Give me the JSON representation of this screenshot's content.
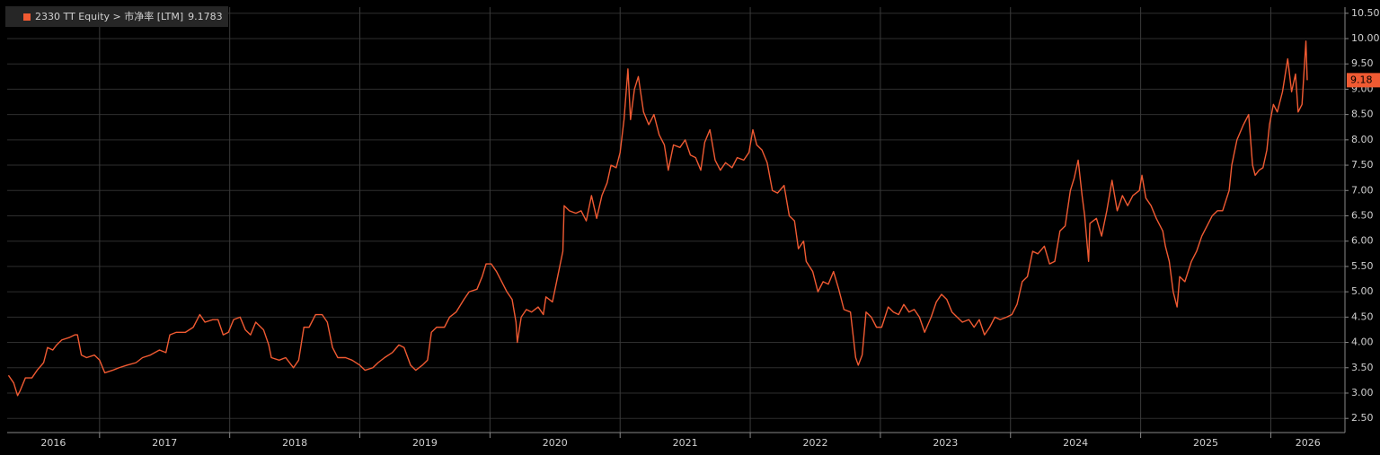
{
  "chart_data": {
    "type": "line",
    "xlim": [
      2016.29,
      2026.57
    ],
    "ylim": [
      2.22,
      10.62
    ],
    "xticks": [
      2017,
      2018,
      2019,
      2020,
      2021,
      2022,
      2023,
      2024,
      2025,
      2026
    ],
    "year_labels": [
      2016,
      2017,
      2018,
      2019,
      2020,
      2021,
      2022,
      2023,
      2024,
      2025,
      2026
    ],
    "yticks": [
      {
        "value": 2.5,
        "label": "2.50"
      },
      {
        "value": 3,
        "label": "3.00"
      },
      {
        "value": 3.5,
        "label": "3.50"
      },
      {
        "value": 4,
        "label": "4.00"
      },
      {
        "value": 4.5,
        "label": "4.50"
      },
      {
        "value": 5,
        "label": "5.00"
      },
      {
        "value": 5.5,
        "label": "5.50"
      },
      {
        "value": 6,
        "label": "6.00"
      },
      {
        "value": 6.5,
        "label": "6.50"
      },
      {
        "value": 7,
        "label": "7.00"
      },
      {
        "value": 7.5,
        "label": "7.50"
      },
      {
        "value": 8,
        "label": "8.00"
      },
      {
        "value": 8.5,
        "label": "8.50"
      },
      {
        "value": 9,
        "label": "9.00"
      },
      {
        "value": 9.5,
        "label": "9.50"
      },
      {
        "value": 10,
        "label": "10.00"
      },
      {
        "value": 10.5,
        "label": "10.50"
      }
    ],
    "grid": true,
    "x": [
      2016.3,
      2016.34,
      2016.37,
      2016.39,
      2016.43,
      2016.48,
      2016.52,
      2016.57,
      2016.6,
      2016.64,
      2016.67,
      2016.71,
      2016.77,
      2016.81,
      2016.83,
      2016.86,
      2016.9,
      2016.96,
      2017.0,
      2017.04,
      2017.1,
      2017.15,
      2017.21,
      2017.28,
      2017.33,
      2017.39,
      2017.46,
      2017.51,
      2017.54,
      2017.59,
      2017.66,
      2017.72,
      2017.77,
      2017.81,
      2017.87,
      2017.91,
      2017.95,
      2017.99,
      2018.03,
      2018.08,
      2018.12,
      2018.16,
      2018.2,
      2018.26,
      2018.3,
      2018.32,
      2018.38,
      2018.43,
      2018.49,
      2018.53,
      2018.57,
      2018.61,
      2018.66,
      2018.71,
      2018.75,
      2018.79,
      2018.83,
      2018.89,
      2018.94,
      2019.0,
      2019.04,
      2019.1,
      2019.14,
      2019.19,
      2019.25,
      2019.3,
      2019.34,
      2019.39,
      2019.43,
      2019.48,
      2019.52,
      2019.55,
      2019.59,
      2019.65,
      2019.69,
      2019.74,
      2019.8,
      2019.84,
      2019.9,
      2019.94,
      2019.97,
      2020.01,
      2020.05,
      2020.09,
      2020.13,
      2020.17,
      2020.2,
      2020.21,
      2020.24,
      2020.28,
      2020.32,
      2020.37,
      2020.41,
      2020.43,
      2020.48,
      2020.52,
      2020.56,
      2020.57,
      2020.61,
      2020.66,
      2020.7,
      2020.74,
      2020.78,
      2020.82,
      2020.86,
      2020.9,
      2020.93,
      2020.97,
      2021.0,
      2021.03,
      2021.06,
      2021.08,
      2021.11,
      2021.14,
      2021.18,
      2021.22,
      2021.26,
      2021.3,
      2021.34,
      2021.37,
      2021.41,
      2021.46,
      2021.5,
      2021.54,
      2021.58,
      2021.62,
      2021.65,
      2021.69,
      2021.73,
      2021.77,
      2021.81,
      2021.86,
      2021.9,
      2021.95,
      2021.99,
      2022.02,
      2022.05,
      2022.09,
      2022.13,
      2022.17,
      2022.21,
      2022.26,
      2022.3,
      2022.34,
      2022.37,
      2022.41,
      2022.43,
      2022.48,
      2022.52,
      2022.56,
      2022.6,
      2022.64,
      2022.68,
      2022.72,
      2022.77,
      2022.81,
      2022.83,
      2022.86,
      2022.89,
      2022.93,
      2022.97,
      2023.01,
      2023.06,
      2023.1,
      2023.14,
      2023.18,
      2023.22,
      2023.26,
      2023.3,
      2023.34,
      2023.39,
      2023.43,
      2023.47,
      2023.51,
      2023.55,
      2023.59,
      2023.63,
      2023.68,
      2023.72,
      2023.76,
      2023.8,
      2023.84,
      2023.88,
      2023.92,
      2023.97,
      2024.01,
      2024.05,
      2024.09,
      2024.13,
      2024.17,
      2024.21,
      2024.26,
      2024.3,
      2024.34,
      2024.38,
      2024.42,
      2024.46,
      2024.49,
      2024.52,
      2024.55,
      2024.57,
      2024.6,
      2024.61,
      2024.66,
      2024.7,
      2024.74,
      2024.78,
      2024.82,
      2024.86,
      2024.9,
      2024.94,
      2024.99,
      2025.01,
      2025.04,
      2025.08,
      2025.12,
      2025.17,
      2025.19,
      2025.22,
      2025.25,
      2025.28,
      2025.3,
      2025.34,
      2025.39,
      2025.43,
      2025.47,
      2025.51,
      2025.55,
      2025.59,
      2025.63,
      2025.68,
      2025.7,
      2025.74,
      2025.79,
      2025.83,
      2025.86,
      2025.88,
      2025.91,
      2025.94,
      2025.97,
      2025.99,
      2026.02,
      2026.05,
      2026.09,
      2026.13,
      2026.16,
      2026.19,
      2026.21,
      2026.24,
      2026.27,
      2026.28
    ],
    "series": [
      {
        "name": "2330 TT Equity > 市净率 [LTM]",
        "color": "#f05a32",
        "last_value_label": "9.18",
        "values": [
          3.35,
          3.2,
          2.95,
          3.05,
          3.3,
          3.3,
          3.45,
          3.6,
          3.9,
          3.85,
          3.95,
          4.05,
          4.1,
          4.15,
          4.15,
          3.75,
          3.7,
          3.75,
          3.65,
          3.4,
          3.45,
          3.5,
          3.55,
          3.6,
          3.7,
          3.75,
          3.85,
          3.8,
          4.15,
          4.2,
          4.2,
          4.3,
          4.55,
          4.4,
          4.45,
          4.45,
          4.15,
          4.2,
          4.45,
          4.5,
          4.25,
          4.15,
          4.4,
          4.25,
          3.95,
          3.7,
          3.65,
          3.7,
          3.5,
          3.65,
          4.3,
          4.3,
          4.55,
          4.55,
          4.4,
          3.9,
          3.7,
          3.7,
          3.65,
          3.55,
          3.45,
          3.5,
          3.6,
          3.7,
          3.8,
          3.95,
          3.9,
          3.55,
          3.45,
          3.55,
          3.65,
          4.2,
          4.3,
          4.3,
          4.5,
          4.6,
          4.85,
          5.0,
          5.05,
          5.3,
          5.55,
          5.55,
          5.4,
          5.2,
          5.0,
          4.85,
          4.4,
          4.0,
          4.5,
          4.65,
          4.6,
          4.7,
          4.55,
          4.9,
          4.8,
          5.3,
          5.8,
          6.7,
          6.6,
          6.55,
          6.6,
          6.4,
          6.9,
          6.45,
          6.9,
          7.15,
          7.5,
          7.45,
          7.75,
          8.4,
          9.4,
          8.4,
          9.0,
          9.25,
          8.55,
          8.3,
          8.5,
          8.1,
          7.9,
          7.4,
          7.9,
          7.85,
          8.0,
          7.7,
          7.65,
          7.4,
          7.95,
          8.2,
          7.6,
          7.4,
          7.55,
          7.45,
          7.65,
          7.6,
          7.75,
          8.2,
          7.9,
          7.8,
          7.55,
          7.0,
          6.95,
          7.1,
          6.5,
          6.4,
          5.85,
          6.0,
          5.6,
          5.4,
          5.0,
          5.2,
          5.15,
          5.4,
          5.05,
          4.65,
          4.6,
          3.7,
          3.55,
          3.75,
          4.6,
          4.5,
          4.3,
          4.3,
          4.7,
          4.6,
          4.55,
          4.75,
          4.6,
          4.65,
          4.5,
          4.2,
          4.5,
          4.8,
          4.95,
          4.85,
          4.6,
          4.5,
          4.4,
          4.45,
          4.3,
          4.45,
          4.15,
          4.3,
          4.5,
          4.45,
          4.5,
          4.55,
          4.75,
          5.2,
          5.3,
          5.8,
          5.75,
          5.9,
          5.55,
          5.6,
          6.2,
          6.3,
          7.0,
          7.25,
          7.6,
          6.9,
          6.5,
          5.6,
          6.35,
          6.45,
          6.1,
          6.6,
          7.2,
          6.6,
          6.9,
          6.7,
          6.9,
          7.0,
          7.3,
          6.85,
          6.7,
          6.45,
          6.2,
          5.9,
          5.6,
          5.0,
          4.7,
          5.3,
          5.2,
          5.6,
          5.8,
          6.1,
          6.3,
          6.5,
          6.6,
          6.6,
          7.0,
          7.5,
          8.0,
          8.3,
          8.5,
          7.5,
          7.3,
          7.4,
          7.45,
          7.8,
          8.3,
          8.7,
          8.55,
          8.95,
          9.6,
          8.95,
          9.3,
          8.55,
          8.7,
          9.95,
          9.1783
        ]
      }
    ]
  }
}
